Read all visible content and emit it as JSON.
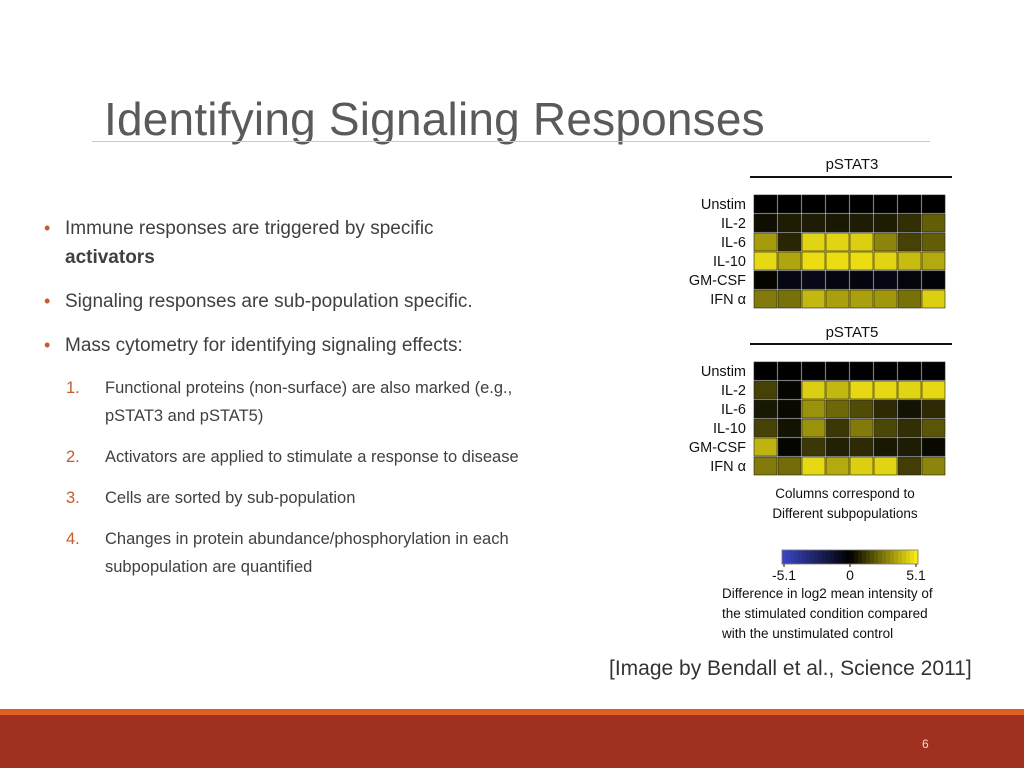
{
  "title": "Identifying Signaling Responses",
  "bullets": [
    {
      "text": "Immune responses are triggered by specific ",
      "bold": "activators"
    },
    {
      "text": "Signaling responses are sub-population specific.",
      "bold": ""
    },
    {
      "text": "Mass cytometry for identifying signaling effects:",
      "bold": ""
    }
  ],
  "steps": [
    {
      "num": "1.",
      "text": "Functional proteins (non-surface) are also marked (e.g., pSTAT3 and pSTAT5)"
    },
    {
      "num": "2.",
      "text": "Activators are applied to stimulate a response to disease"
    },
    {
      "num": "3.",
      "text": "Cells are sorted by sub-population"
    },
    {
      "num": "4.",
      "text": "Changes in protein abundance/phosphorylation in each subpopulation are quantified"
    }
  ],
  "figure": {
    "columns_caption_line1": "Columns correspond to",
    "columns_caption_line2": "Different subpopulations",
    "scale_caption_line1": "Difference in log2 mean intensity of",
    "scale_caption_line2": "the stimulated condition compared",
    "scale_caption_line3": "with the unstimulated control",
    "scale_min": "-5.1",
    "scale_mid": "0",
    "scale_max": "5.1"
  },
  "citation": "[Image by Bendall et al., Science 2011]",
  "slide_number": "6",
  "chart_data": [
    {
      "type": "heatmap",
      "title": "pSTAT3",
      "rows": [
        "Unstim",
        "IL-2",
        "IL-6",
        "IL-10",
        "GM-CSF",
        "IFN α"
      ],
      "columns": 8,
      "value_range": [
        -5.1,
        5.1
      ],
      "values": [
        [
          0,
          0,
          0,
          0,
          0,
          0,
          0,
          0
        ],
        [
          0.3,
          0.6,
          0.6,
          0.5,
          0.6,
          0.6,
          1.0,
          2.0
        ],
        [
          3.3,
          0.8,
          4.5,
          4.5,
          4.4,
          2.8,
          1.4,
          2.0
        ],
        [
          4.6,
          3.5,
          4.7,
          4.7,
          4.7,
          4.5,
          4.0,
          3.6
        ],
        [
          0.1,
          -0.5,
          -0.6,
          -0.4,
          -0.4,
          -0.5,
          -0.3,
          -0.2
        ],
        [
          2.6,
          2.4,
          3.9,
          3.4,
          3.4,
          3.2,
          2.4,
          4.4
        ]
      ]
    },
    {
      "type": "heatmap",
      "title": "pSTAT5",
      "rows": [
        "Unstim",
        "IL-2",
        "IL-6",
        "IL-10",
        "GM-CSF",
        "IFN α"
      ],
      "columns": 8,
      "value_range": [
        -5.1,
        5.1
      ],
      "values": [
        [
          0,
          0,
          0,
          0,
          0,
          0,
          0,
          0
        ],
        [
          1.4,
          0.1,
          4.4,
          3.9,
          4.6,
          4.6,
          4.5,
          4.6
        ],
        [
          0.5,
          0.2,
          3.1,
          2.2,
          1.6,
          0.9,
          0.4,
          0.9
        ],
        [
          1.4,
          0.4,
          3.1,
          1.2,
          2.6,
          1.5,
          1.0,
          1.8
        ],
        [
          3.8,
          0.1,
          1.2,
          0.7,
          0.9,
          0.5,
          0.6,
          0.2
        ],
        [
          2.6,
          2.3,
          4.6,
          3.6,
          4.4,
          4.5,
          1.3,
          2.8
        ]
      ]
    }
  ]
}
